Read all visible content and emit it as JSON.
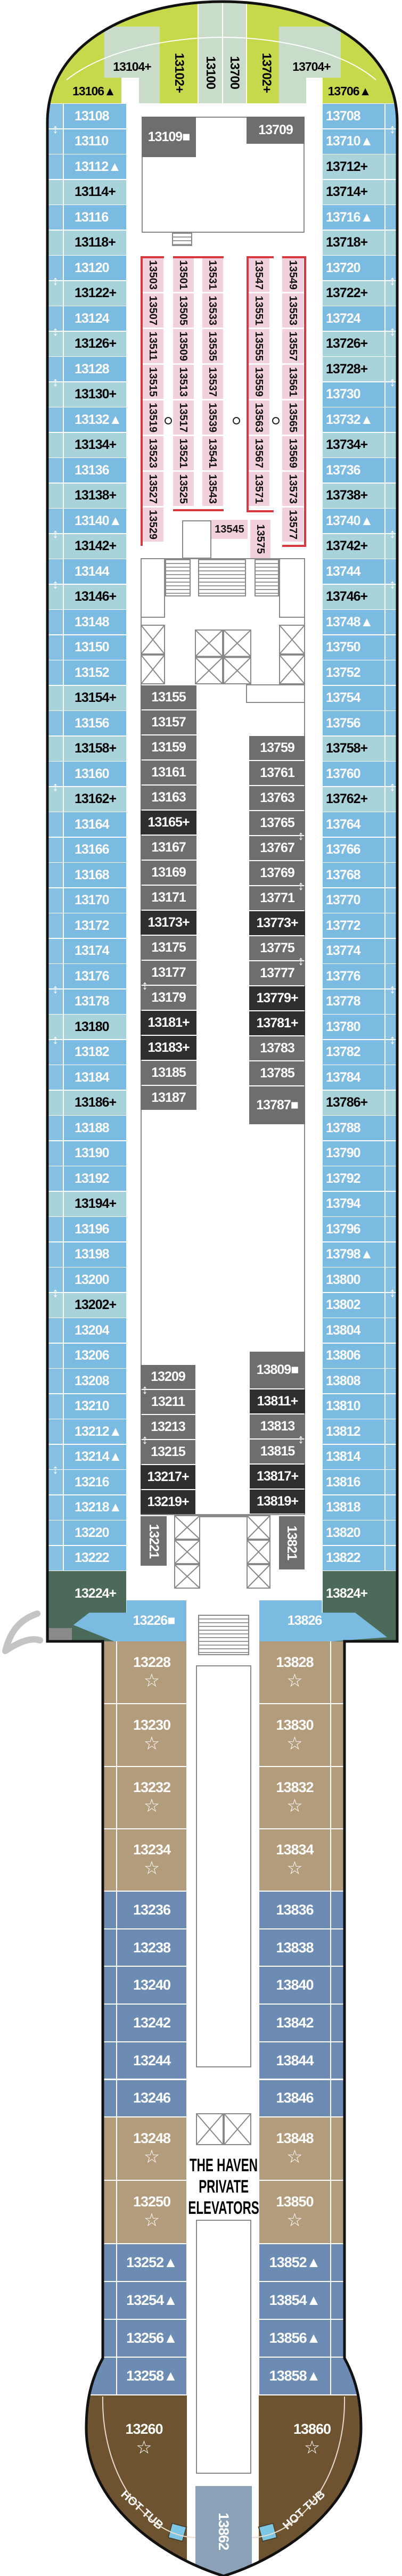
{
  "bow": {
    "port_corner": "13106▲",
    "port_forward": "13104+",
    "center": [
      "13102+",
      "13100",
      "13700",
      "13702+"
    ],
    "starboard_forward": "13704+",
    "starboard_corner": "13706▲"
  },
  "port_cabins": [
    "13108",
    "13110",
    "13112▲",
    "13114+",
    "13116",
    "13118+",
    "13120",
    "13122+",
    "13124",
    "13126+",
    "13128",
    "13130+",
    "13132▲",
    "13134+",
    "13136",
    "13138+",
    "13140▲",
    "13142+",
    "13144",
    "13146+",
    "13148",
    "13150",
    "13152",
    "13154+",
    "13156",
    "13158+",
    "13160",
    "13162+",
    "13164",
    "13166",
    "13168",
    "13170",
    "13172",
    "13174",
    "13176",
    "13178",
    "13180",
    "13182",
    "13184",
    "13186+",
    "13188",
    "13190",
    "13192",
    "13194+",
    "13196",
    "13198",
    "13200",
    "13202+",
    "13204",
    "13206",
    "13208",
    "13210",
    "13212▲",
    "13214▲",
    "13216",
    "13218▲",
    "13220",
    "13222"
  ],
  "starboard_cabins": [
    "13708",
    "13710▲",
    "13712+",
    "13714+",
    "13716▲",
    "13718+",
    "13720",
    "13722+",
    "13724",
    "13726+",
    "13728+",
    "13730",
    "13732▲",
    "13734+",
    "13736",
    "13738+",
    "13740▲",
    "13742+",
    "13744",
    "13746+",
    "13748▲",
    "13750",
    "13752",
    "13754",
    "13756",
    "13758+",
    "13760",
    "13762+",
    "13764",
    "13766",
    "13768",
    "13770",
    "13772",
    "13774",
    "13776",
    "13778",
    "13780",
    "13782",
    "13784",
    "13786+",
    "13788",
    "13790",
    "13792",
    "13794",
    "13796",
    "13798▲",
    "13800",
    "13802",
    "13804",
    "13806",
    "13808",
    "13810",
    "13812",
    "13814",
    "13816",
    "13818",
    "13820",
    "13822"
  ],
  "highlighted_without_plus": [
    "13180"
  ],
  "connecting_pairs": [
    [
      "13108",
      "13110"
    ],
    [
      "13120",
      "13122+"
    ],
    [
      "13124",
      "13126+"
    ],
    [
      "13128",
      "13130+"
    ],
    [
      "13140▲",
      "13142+"
    ],
    [
      "13144",
      "13146+"
    ],
    [
      "13160",
      "13162+"
    ],
    [
      "13176",
      "13178"
    ],
    [
      "13180",
      "13182"
    ],
    [
      "13200",
      "13202+"
    ],
    [
      "13214▲",
      "13216"
    ],
    [
      "13708",
      "13710▲"
    ],
    [
      "13720",
      "13722+"
    ],
    [
      "13724",
      "13726+"
    ],
    [
      "13728+",
      "13730"
    ],
    [
      "13740▲",
      "13742+"
    ],
    [
      "13744",
      "13746+"
    ],
    [
      "13760",
      "13762+"
    ],
    [
      "13776",
      "13778"
    ],
    [
      "13780",
      "13782"
    ],
    [
      "13800",
      "13802"
    ],
    [
      "13177",
      "13179"
    ],
    [
      "13765",
      "13767"
    ],
    [
      "13769",
      "13771"
    ],
    [
      "13775",
      "13777"
    ],
    [
      "13209",
      "13211"
    ],
    [
      "13213",
      "13215"
    ],
    [
      "13813",
      "13815"
    ]
  ],
  "forward_center": {
    "port": "13109■",
    "starboard": "13709"
  },
  "inside_cabins": {
    "col1": [
      "13503",
      "13507",
      "13511",
      "13515",
      "13519",
      "13523",
      "13527",
      "13529"
    ],
    "col2": [
      "13501",
      "13505",
      "13509",
      "13513",
      "13517",
      "13521",
      "13525"
    ],
    "col3": [
      "13531",
      "13533",
      "13535",
      "13537",
      "13539",
      "13541",
      "13543"
    ],
    "col4": [
      "13547",
      "13551",
      "13555",
      "13559",
      "13563",
      "13567",
      "13571"
    ],
    "col5": [
      "13549",
      "13553",
      "13557",
      "13561",
      "13565",
      "13569",
      "13573",
      "13577"
    ],
    "cross_port": "13545",
    "cross_starboard": "13575"
  },
  "mid_port": [
    "13155",
    "13157",
    "13159",
    "13161",
    "13163",
    "13165+",
    "13167",
    "13169",
    "13171",
    "13173+",
    "13175",
    "13177",
    "13179",
    "13181+",
    "13183+",
    "13185",
    "13187"
  ],
  "mid_starboard": [
    "13759",
    "13761",
    "13763",
    "13765",
    "13767",
    "13769",
    "13771",
    "13773+",
    "13775",
    "13777",
    "13779+",
    "13781+",
    "13783",
    "13785",
    "13787■"
  ],
  "aft_port": [
    "13209",
    "13211",
    "13213",
    "13215",
    "13217+",
    "13219+"
  ],
  "aft_starboard": [
    "13809■",
    "13811+",
    "13813",
    "13815",
    "13817+",
    "13819+"
  ],
  "aft_port_vertical": "13221",
  "aft_starboard_vertical": "13821",
  "aft_corner": {
    "port": "13224+",
    "starboard": "13824+",
    "port_inner": "13226■",
    "starboard_inner": "13826"
  },
  "haven": {
    "port": [
      {
        "label": "13228",
        "type": "suite"
      },
      {
        "label": "13230",
        "type": "suite"
      },
      {
        "label": "13232",
        "type": "suite"
      },
      {
        "label": "13234",
        "type": "suite"
      },
      {
        "label": "13236",
        "type": "balcony"
      },
      {
        "label": "13238",
        "type": "balcony"
      },
      {
        "label": "13240",
        "type": "balcony"
      },
      {
        "label": "13242",
        "type": "balcony"
      },
      {
        "label": "13244",
        "type": "balcony"
      },
      {
        "label": "13246",
        "type": "balcony"
      },
      {
        "label": "13248",
        "type": "suite"
      },
      {
        "label": "13250",
        "type": "suite"
      },
      {
        "label": "13252▲",
        "type": "balcony"
      },
      {
        "label": "13254▲",
        "type": "balcony"
      },
      {
        "label": "13256▲",
        "type": "balcony"
      },
      {
        "label": "13258▲",
        "type": "balcony"
      },
      {
        "label": "13260",
        "type": "penthouse"
      }
    ],
    "starboard": [
      {
        "label": "13828",
        "type": "suite"
      },
      {
        "label": "13830",
        "type": "suite"
      },
      {
        "label": "13832",
        "type": "suite"
      },
      {
        "label": "13834",
        "type": "suite"
      },
      {
        "label": "13836",
        "type": "balcony"
      },
      {
        "label": "13838",
        "type": "balcony"
      },
      {
        "label": "13840",
        "type": "balcony"
      },
      {
        "label": "13842",
        "type": "balcony"
      },
      {
        "label": "13844",
        "type": "balcony"
      },
      {
        "label": "13846",
        "type": "balcony"
      },
      {
        "label": "13848",
        "type": "suite"
      },
      {
        "label": "13850",
        "type": "suite"
      },
      {
        "label": "13852▲",
        "type": "balcony"
      },
      {
        "label": "13854▲",
        "type": "balcony"
      },
      {
        "label": "13856▲",
        "type": "balcony"
      },
      {
        "label": "13858▲",
        "type": "balcony"
      },
      {
        "label": "13860",
        "type": "penthouse"
      }
    ],
    "aft_center": "13862",
    "elevators_label": [
      "THE HAVEN",
      "PRIVATE",
      "ELEVATORS"
    ],
    "hot_tubs": [
      "HOT TUB",
      "HOT TUB"
    ]
  },
  "colors": {
    "bow_lime": "#c7d84b",
    "bow_light": "#c9dcca",
    "cabin_blue": "#7cbbe1",
    "balcony_strip": "#86c0e2",
    "cabin_highlight": "#a9d3da",
    "inside_gray": "#6e6e6e",
    "inside_dark": "#2f2f2f",
    "inside_pink": "#f3d0dd",
    "inside_border_red": "#d9383f",
    "aft_corner_green": "#4b6a59",
    "haven_tan": "#b39c7b",
    "haven_blue": "#6c8cb4",
    "haven_brown": "#6e5331",
    "haven_center": "#8ba1b8",
    "hull": "#111111"
  }
}
